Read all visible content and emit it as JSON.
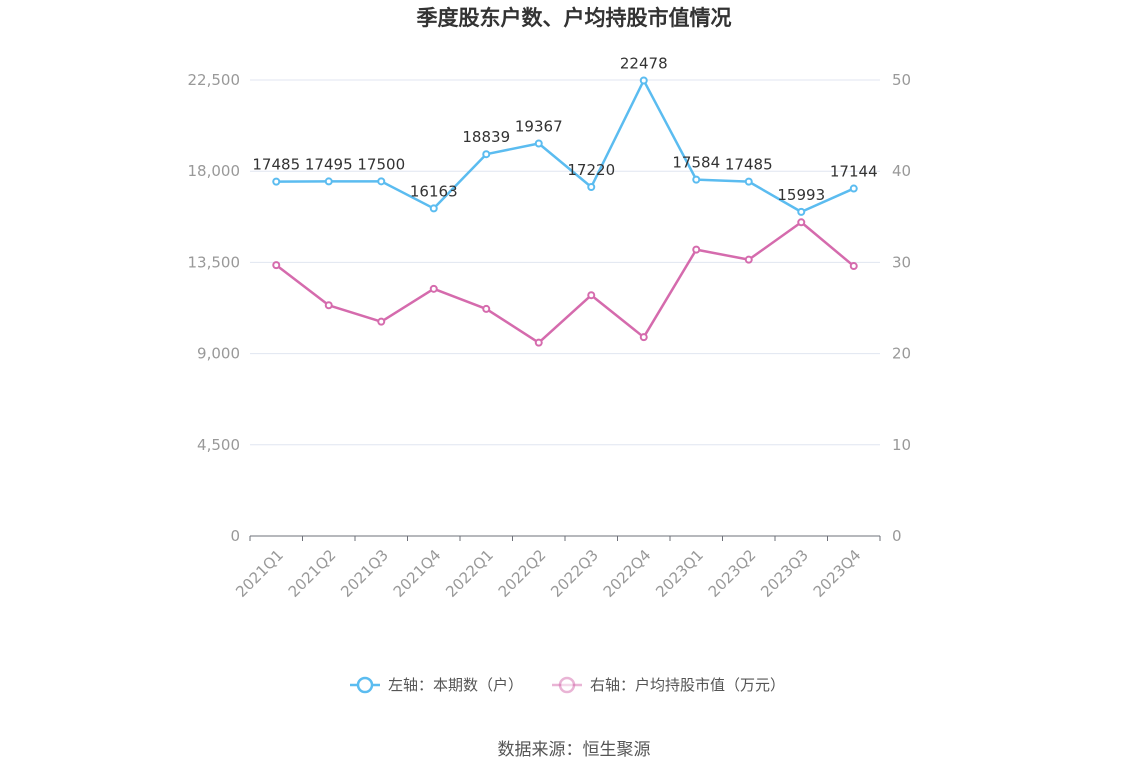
{
  "chart_data": {
    "type": "line",
    "title": "季度股东户数、户均持股市值情况",
    "categories": [
      "2021Q1",
      "2021Q2",
      "2021Q3",
      "2021Q4",
      "2022Q1",
      "2022Q2",
      "2022Q3",
      "2022Q4",
      "2023Q1",
      "2023Q2",
      "2023Q3",
      "2023Q4"
    ],
    "left_axis": {
      "ylim": [
        0,
        22500
      ],
      "ticks": [
        "0",
        "4,500",
        "9,000",
        "13,500",
        "18,000",
        "22,500"
      ]
    },
    "right_axis": {
      "ylim": [
        0,
        50
      ],
      "ticks": [
        "0",
        "10",
        "20",
        "30",
        "40",
        "50"
      ]
    },
    "series": [
      {
        "name": "左轴：本期数（户）",
        "axis": "left",
        "color": "#5bbcf0",
        "values": [
          17485,
          17495,
          17500,
          16163,
          18839,
          19367,
          17220,
          22478,
          17584,
          17485,
          15993,
          17144
        ],
        "show_labels": true
      },
      {
        "name": "右轴：户均持股市值（万元）",
        "axis": "right",
        "color": "#d56bad",
        "values": [
          29.7,
          25.3,
          23.5,
          27.1,
          24.9,
          21.2,
          26.4,
          21.8,
          31.4,
          30.3,
          34.4,
          29.6
        ],
        "show_labels": false
      }
    ],
    "grid": true,
    "legend": "bottom-center",
    "source": "数据来源：恒生聚源"
  }
}
